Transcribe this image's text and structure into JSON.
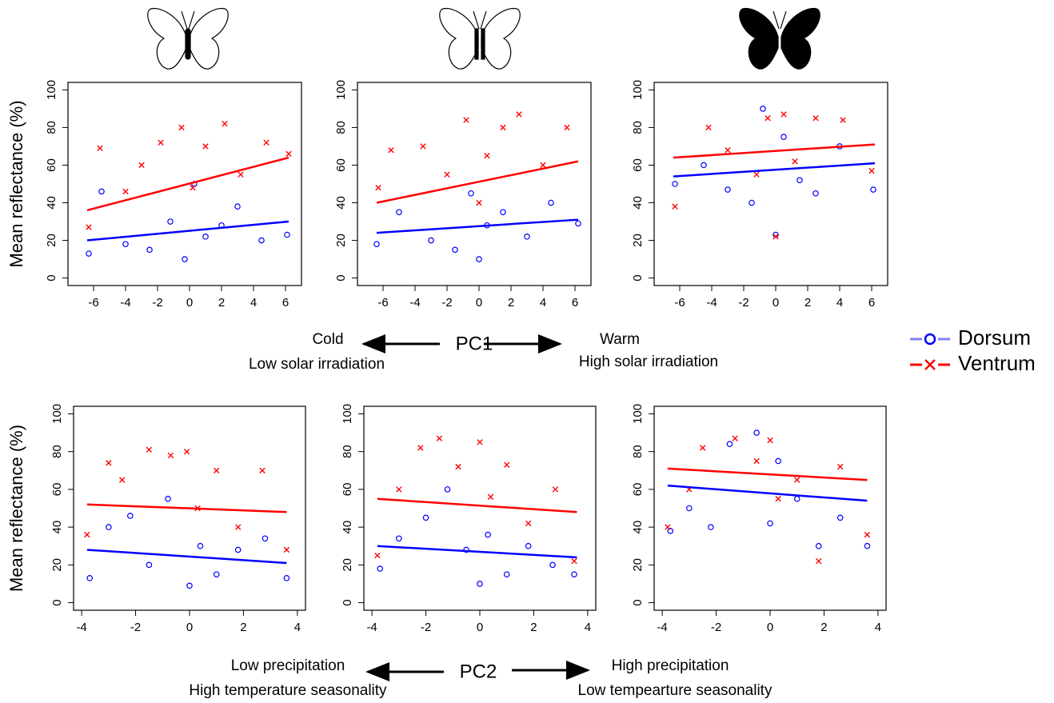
{
  "chart_data": [
    {
      "type": "scatter",
      "ylabel": "Mean reflectance (%)",
      "xlim": [
        -7.6,
        7
      ],
      "ylim": [
        -4,
        104
      ],
      "xticks": [
        -6,
        -4,
        -2,
        0,
        2,
        4,
        6
      ],
      "yticks": [
        0,
        20,
        40,
        60,
        80,
        100
      ],
      "series": [
        {
          "color": "#0000ff",
          "marker": "circle",
          "x": [
            -6.3,
            -5.5,
            -4,
            -2.5,
            -1.2,
            -0.3,
            0.3,
            1,
            2,
            3,
            4.5,
            6.1
          ],
          "values": [
            13,
            46,
            18,
            15,
            30,
            10,
            50,
            22,
            28,
            38,
            20,
            23
          ],
          "trend": {
            "x": [
              -6.4,
              6.2
            ],
            "values": [
              20,
              30
            ]
          }
        },
        {
          "color": "#ff0000",
          "marker": "cross",
          "x": [
            -6.3,
            -5.6,
            -4,
            -3,
            -1.8,
            -0.5,
            0.2,
            1,
            2.2,
            3.2,
            4.8,
            6.2
          ],
          "values": [
            27,
            69,
            46,
            60,
            72,
            80,
            48,
            70,
            82,
            55,
            72,
            66
          ],
          "trend": {
            "x": [
              -6.4,
              6.2
            ],
            "values": [
              36,
              64
            ]
          }
        }
      ]
    },
    {
      "type": "scatter",
      "xlim": [
        -7.6,
        7
      ],
      "ylim": [
        -4,
        104
      ],
      "xticks": [
        -6,
        -4,
        -2,
        0,
        2,
        4,
        6
      ],
      "yticks": [
        0,
        20,
        40,
        60,
        80,
        100
      ],
      "series": [
        {
          "color": "#0000ff",
          "marker": "circle",
          "x": [
            -6.4,
            -5,
            -3,
            -1.5,
            -0.5,
            0,
            0.5,
            1.5,
            3,
            4.5,
            6.2
          ],
          "values": [
            18,
            35,
            20,
            15,
            45,
            10,
            28,
            35,
            22,
            40,
            29
          ],
          "trend": {
            "x": [
              -6.4,
              6.2
            ],
            "values": [
              24,
              31
            ]
          }
        },
        {
          "color": "#ff0000",
          "marker": "cross",
          "x": [
            -6.3,
            -5.5,
            -3.5,
            -2,
            -0.8,
            0,
            0.5,
            1.5,
            2.5,
            4,
            5.5
          ],
          "values": [
            48,
            68,
            70,
            55,
            84,
            40,
            65,
            80,
            87,
            60,
            80
          ],
          "trend": {
            "x": [
              -6.4,
              6.2
            ],
            "values": [
              40,
              62
            ]
          }
        }
      ]
    },
    {
      "type": "scatter",
      "xlim": [
        -7.6,
        7
      ],
      "ylim": [
        -4,
        104
      ],
      "xticks": [
        -6,
        -4,
        -2,
        0,
        2,
        4,
        6
      ],
      "yticks": [
        0,
        20,
        40,
        60,
        80,
        100
      ],
      "series": [
        {
          "color": "#0000ff",
          "marker": "circle",
          "x": [
            -6.3,
            -4.5,
            -3,
            -1.5,
            -0.8,
            0,
            0.5,
            1.5,
            2.5,
            4,
            6.1
          ],
          "values": [
            50,
            60,
            47,
            40,
            90,
            23,
            75,
            52,
            45,
            70,
            47
          ],
          "trend": {
            "x": [
              -6.4,
              6.2
            ],
            "values": [
              54,
              61
            ]
          }
        },
        {
          "color": "#ff0000",
          "marker": "cross",
          "x": [
            -6.3,
            -4.2,
            -3,
            -1.2,
            -0.5,
            0,
            0.5,
            1.2,
            2.5,
            4.2,
            6
          ],
          "values": [
            38,
            80,
            68,
            55,
            85,
            22,
            87,
            62,
            85,
            84,
            57
          ],
          "trend": {
            "x": [
              -6.4,
              6.2
            ],
            "values": [
              64,
              71
            ]
          }
        }
      ]
    },
    {
      "type": "scatter",
      "ylabel": "Mean reflectance (%)",
      "xlim": [
        -4.3,
        4.3
      ],
      "ylim": [
        -4,
        104
      ],
      "xticks": [
        -4,
        -2,
        0,
        2,
        4
      ],
      "yticks": [
        0,
        20,
        40,
        60,
        80,
        100
      ],
      "series": [
        {
          "color": "#0000ff",
          "marker": "circle",
          "x": [
            -3.7,
            -3,
            -2.2,
            -1.5,
            -0.8,
            0,
            0.4,
            1,
            1.8,
            2.8,
            3.6
          ],
          "values": [
            13,
            40,
            46,
            20,
            55,
            9,
            30,
            15,
            28,
            34,
            13
          ],
          "trend": {
            "x": [
              -3.8,
              3.6
            ],
            "values": [
              28,
              21
            ]
          }
        },
        {
          "color": "#ff0000",
          "marker": "cross",
          "x": [
            -3.8,
            -3,
            -2.5,
            -1.5,
            -0.7,
            -0.1,
            0.3,
            1,
            1.8,
            2.7,
            3.6
          ],
          "values": [
            36,
            74,
            65,
            81,
            78,
            80,
            50,
            70,
            40,
            70,
            28
          ],
          "trend": {
            "x": [
              -3.8,
              3.6
            ],
            "values": [
              52,
              48
            ]
          }
        }
      ]
    },
    {
      "type": "scatter",
      "xlim": [
        -4.3,
        4.3
      ],
      "ylim": [
        -4,
        104
      ],
      "xticks": [
        -4,
        -2,
        0,
        2,
        4
      ],
      "yticks": [
        0,
        20,
        40,
        60,
        80,
        100
      ],
      "series": [
        {
          "color": "#0000ff",
          "marker": "circle",
          "x": [
            -3.7,
            -3,
            -2,
            -1.2,
            -0.5,
            0,
            0.3,
            1,
            1.8,
            2.7,
            3.5
          ],
          "values": [
            18,
            34,
            45,
            60,
            28,
            10,
            36,
            15,
            30,
            20,
            15
          ],
          "trend": {
            "x": [
              -3.8,
              3.6
            ],
            "values": [
              30,
              24
            ]
          }
        },
        {
          "color": "#ff0000",
          "marker": "cross",
          "x": [
            -3.8,
            -3,
            -2.2,
            -1.5,
            -0.8,
            0,
            0.4,
            1,
            1.8,
            2.8,
            3.5
          ],
          "values": [
            25,
            60,
            82,
            87,
            72,
            85,
            56,
            73,
            42,
            60,
            22
          ],
          "trend": {
            "x": [
              -3.8,
              3.6
            ],
            "values": [
              55,
              48
            ]
          }
        }
      ]
    },
    {
      "type": "scatter",
      "xlim": [
        -4.3,
        4.3
      ],
      "ylim": [
        -4,
        104
      ],
      "xticks": [
        -4,
        -2,
        0,
        2,
        4
      ],
      "yticks": [
        0,
        20,
        40,
        60,
        80,
        100
      ],
      "series": [
        {
          "color": "#0000ff",
          "marker": "circle",
          "x": [
            -3.7,
            -3,
            -2.2,
            -1.5,
            -0.5,
            0,
            0.3,
            1,
            1.8,
            2.6,
            3.6
          ],
          "values": [
            38,
            50,
            40,
            84,
            90,
            42,
            75,
            55,
            30,
            45,
            30
          ],
          "trend": {
            "x": [
              -3.8,
              3.6
            ],
            "values": [
              62,
              54
            ]
          }
        },
        {
          "color": "#ff0000",
          "marker": "cross",
          "x": [
            -3.8,
            -3,
            -2.5,
            -1.3,
            -0.5,
            0,
            0.3,
            1,
            1.8,
            2.6,
            3.6
          ],
          "values": [
            40,
            60,
            82,
            87,
            75,
            86,
            55,
            65,
            22,
            72,
            36
          ],
          "trend": {
            "x": [
              -3.8,
              3.6
            ],
            "values": [
              71,
              65
            ]
          }
        }
      ]
    }
  ],
  "legend": [
    {
      "name": "Dorsum",
      "color": "#0000ff",
      "line_color": "#8080ff",
      "marker": "circle"
    },
    {
      "name": "Ventrum",
      "color": "#ff0000",
      "line_color": "#ff0000",
      "marker": "cross"
    }
  ],
  "pc1": {
    "left": "Cold",
    "axis": "PC1",
    "right": "Warm",
    "left_note": "Low solar irradiation",
    "right_note": "High solar irradiation"
  },
  "pc2": {
    "left": "Low  precipitation",
    "axis": "PC2",
    "right": "High  precipitation",
    "left_note": "High temperature seasonality",
    "right_note": "Low tempearture seasonality"
  }
}
